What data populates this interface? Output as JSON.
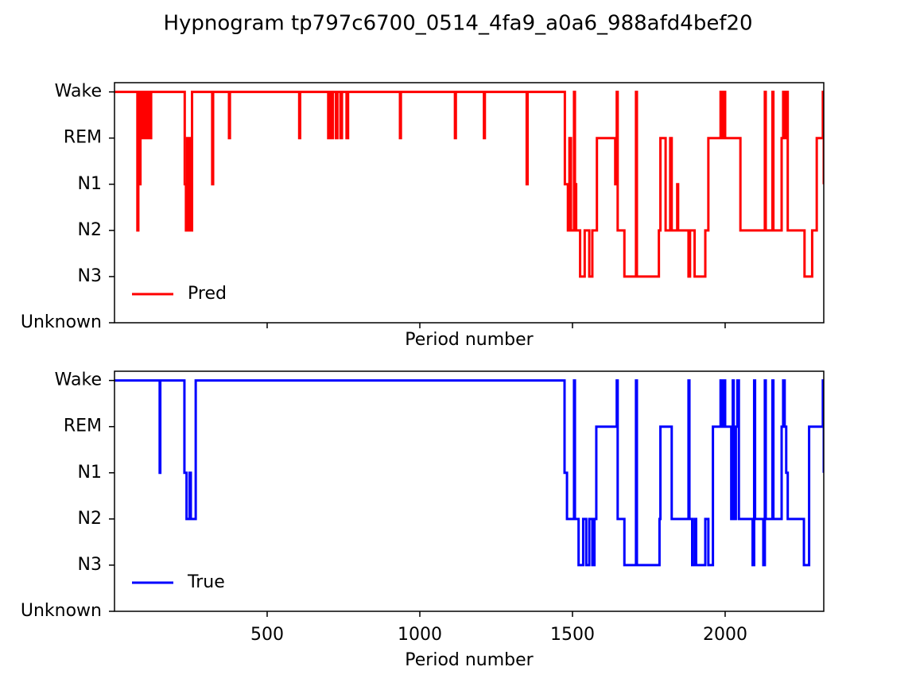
{
  "title": "Hypnogram tp797c6700_0514_4fa9_a0a6_988afd4bef20",
  "chart_data": [
    {
      "type": "line",
      "drawstyle": "steps-post",
      "xlabel": "Period number",
      "xtick_labels_visible": false,
      "legend": "lower left",
      "xlim": [
        0,
        2323
      ],
      "xticks": [
        500,
        1000,
        1500,
        2000
      ],
      "ylim": [
        0,
        5.2
      ],
      "yticks": [
        {
          "value": 0,
          "label": "Unknown"
        },
        {
          "value": 1,
          "label": "N3"
        },
        {
          "value": 2,
          "label": "N2"
        },
        {
          "value": 3,
          "label": "N1"
        },
        {
          "value": 4,
          "label": "REM"
        },
        {
          "value": 5,
          "label": "Wake"
        }
      ],
      "series": [
        {
          "name": "Pred",
          "color": "#ff0000",
          "x": [
            0,
            75,
            78,
            80,
            85,
            88,
            95,
            98,
            105,
            108,
            112,
            115,
            120,
            230,
            234,
            238,
            242,
            246,
            250,
            254,
            320,
            323,
            375,
            378,
            605,
            608,
            700,
            705,
            710,
            715,
            725,
            730,
            740,
            745,
            760,
            765,
            935,
            938,
            1115,
            1118,
            1210,
            1213,
            1350,
            1353,
            1475,
            1485,
            1490,
            1495,
            1505,
            1508,
            1512,
            1525,
            1540,
            1555,
            1565,
            1580,
            1640,
            1645,
            1648,
            1670,
            1708,
            1711,
            1783,
            1788,
            1805,
            1820,
            1825,
            1843,
            1846,
            1880,
            1885,
            1900,
            1935,
            1945,
            1985,
            1990,
            1995,
            2000,
            2050,
            2130,
            2133,
            2155,
            2158,
            2185,
            2190,
            2195,
            2200,
            2205,
            2260,
            2285,
            2300,
            2320,
            2323
          ],
          "values": [
            5,
            2,
            5,
            3,
            5,
            4,
            5,
            4,
            5,
            4,
            5,
            4,
            5,
            3,
            2,
            4,
            2,
            4,
            2,
            5,
            3,
            5,
            4,
            5,
            4,
            5,
            4,
            5,
            4,
            5,
            4,
            5,
            4,
            5,
            4,
            5,
            4,
            5,
            4,
            5,
            4,
            5,
            3,
            5,
            3,
            2,
            4,
            2,
            5,
            3,
            2,
            1,
            2,
            1,
            2,
            4,
            3,
            5,
            2,
            1,
            5,
            1,
            2,
            4,
            2,
            4,
            2,
            3,
            2,
            1,
            2,
            1,
            2,
            4,
            5,
            4,
            5,
            4,
            2,
            5,
            2,
            5,
            2,
            4,
            5,
            4,
            5,
            2,
            1,
            2,
            4,
            5,
            3
          ]
        }
      ]
    },
    {
      "type": "line",
      "drawstyle": "steps-post",
      "xlabel": "Period number",
      "xtick_labels_visible": true,
      "legend": "lower left",
      "xlim": [
        0,
        2323
      ],
      "xticks": [
        500,
        1000,
        1500,
        2000
      ],
      "ylim": [
        0,
        5.2
      ],
      "yticks": [
        {
          "value": 0,
          "label": "Unknown"
        },
        {
          "value": 1,
          "label": "N3"
        },
        {
          "value": 2,
          "label": "N2"
        },
        {
          "value": 3,
          "label": "N1"
        },
        {
          "value": 4,
          "label": "REM"
        },
        {
          "value": 5,
          "label": "Wake"
        }
      ],
      "series": [
        {
          "name": "True",
          "color": "#0000ff",
          "x": [
            0,
            148,
            150,
            229,
            236,
            246,
            250,
            266,
            1474,
            1482,
            1505,
            1508,
            1520,
            1535,
            1545,
            1555,
            1565,
            1572,
            1578,
            1645,
            1648,
            1670,
            1708,
            1711,
            1785,
            1788,
            1825,
            1880,
            1883,
            1892,
            1900,
            1905,
            1935,
            1945,
            1960,
            1985,
            1990,
            1995,
            2000,
            2020,
            2025,
            2028,
            2035,
            2040,
            2045,
            2090,
            2095,
            2098,
            2125,
            2130,
            2133,
            2155,
            2158,
            2185,
            2190,
            2195,
            2200,
            2205,
            2258,
            2275,
            2320,
            2323
          ],
          "values": [
            5,
            3,
            5,
            3,
            2,
            3,
            2,
            5,
            3,
            2,
            5,
            2,
            1,
            2,
            1,
            2,
            1,
            2,
            4,
            5,
            2,
            1,
            5,
            1,
            2,
            4,
            2,
            5,
            2,
            1,
            2,
            1,
            2,
            1,
            4,
            5,
            4,
            5,
            4,
            2,
            5,
            2,
            4,
            5,
            2,
            1,
            5,
            2,
            1,
            5,
            2,
            5,
            2,
            4,
            5,
            4,
            3,
            2,
            1,
            4,
            5,
            3
          ]
        }
      ]
    }
  ]
}
